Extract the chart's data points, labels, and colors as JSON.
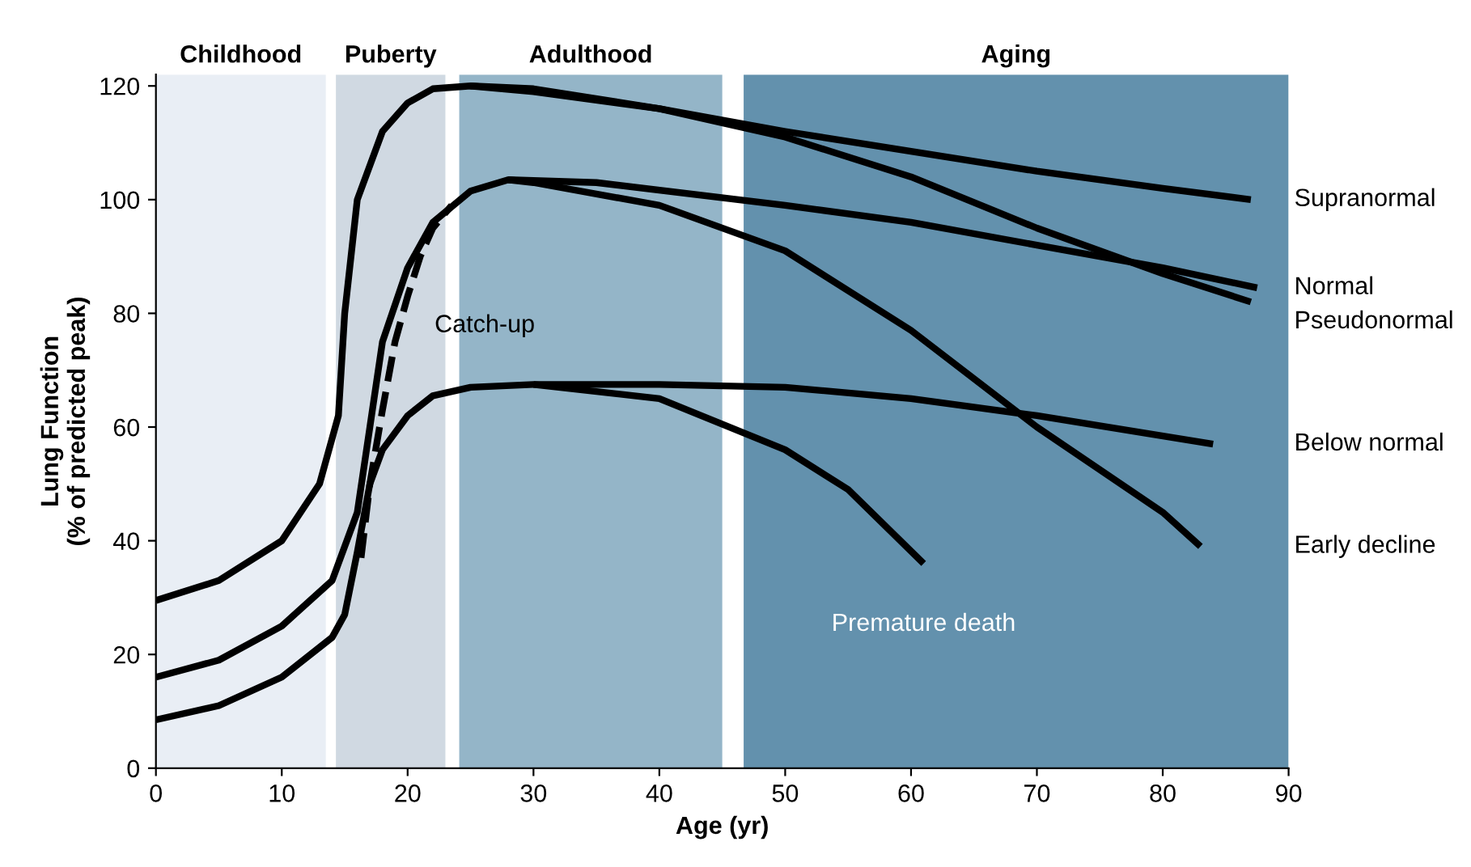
{
  "chart_data": {
    "type": "line",
    "xlabel": "Age (yr)",
    "ylabel": "Lung Function\n(% of predicted peak)",
    "xlim": [
      0,
      90
    ],
    "ylim": [
      0,
      122
    ],
    "xticks": [
      0,
      10,
      20,
      30,
      40,
      50,
      60,
      70,
      80,
      90
    ],
    "yticks": [
      0,
      20,
      40,
      60,
      80,
      100,
      120
    ],
    "grid": false,
    "line_style": "solid",
    "marker": "none",
    "bands": [
      {
        "axis": "x",
        "from": 0,
        "to": 13.5,
        "label": "Childhood",
        "color": "#e9eef5"
      },
      {
        "axis": "x",
        "from": 14.3,
        "to": 23,
        "label": "Puberty",
        "color": "#d0d9e2"
      },
      {
        "axis": "x",
        "from": 24.1,
        "to": 45,
        "label": "Adulthood",
        "color": "#94b5c8"
      },
      {
        "axis": "x",
        "from": 46.7,
        "to": 90,
        "label": "Aging",
        "color": "#6391ad"
      }
    ],
    "series": [
      {
        "name": "Supranormal",
        "color": "#000000",
        "x": [
          0,
          5,
          10,
          13,
          14.5,
          15,
          16,
          18,
          20,
          22,
          25,
          30,
          40,
          50,
          60,
          70,
          80,
          87
        ],
        "values": [
          29.5,
          33,
          40,
          50,
          62,
          80,
          100,
          112,
          117,
          119.5,
          120,
          119,
          116,
          112,
          108.5,
          105,
          102,
          100
        ]
      },
      {
        "name": "Normal",
        "color": "#000000",
        "x": [
          0,
          5,
          10,
          14,
          16,
          17,
          18,
          20,
          22,
          25,
          28,
          35,
          50,
          60,
          70,
          80,
          87.5
        ],
        "values": [
          16,
          19,
          25,
          33,
          45,
          60,
          75,
          88,
          96,
          101.5,
          103.5,
          103,
          99,
          96,
          92,
          88,
          84.5
        ]
      },
      {
        "name": "Pseudonormal",
        "color": "#000000",
        "x": [
          25,
          30,
          40,
          50,
          60,
          70,
          80,
          87
        ],
        "values": [
          120,
          119.5,
          116,
          111,
          104,
          95,
          87,
          82
        ]
      },
      {
        "name": "Below normal",
        "color": "#000000",
        "x": [
          0,
          5,
          10,
          14,
          15,
          16,
          17,
          18,
          20,
          22,
          25,
          30,
          40,
          50,
          60,
          70,
          84
        ],
        "values": [
          8.5,
          11,
          16,
          23,
          27,
          38,
          50,
          56,
          62,
          65.5,
          67,
          67.5,
          67.5,
          67,
          65,
          62,
          57
        ]
      },
      {
        "name": "Early decline",
        "color": "#000000",
        "x": [
          28,
          30,
          40,
          50,
          60,
          70,
          80,
          83
        ],
        "values": [
          103.5,
          103,
          99,
          91,
          77,
          60,
          45,
          39
        ]
      },
      {
        "color": "#000000",
        "line_style": "dashed",
        "x": [
          16.3,
          17,
          18,
          19,
          20,
          21,
          22,
          23.5
        ],
        "values": [
          37,
          50,
          63,
          75,
          83,
          90,
          95,
          99
        ]
      },
      {
        "color": "#000000",
        "x": [
          30,
          40,
          50,
          55,
          61
        ],
        "values": [
          67.5,
          65,
          56,
          49,
          36
        ]
      }
    ],
    "annotations": [
      {
        "text": "Catch-up",
        "x": 20,
        "y": 83
      },
      {
        "text": "Premature death",
        "x": 61,
        "y": 36
      }
    ]
  }
}
